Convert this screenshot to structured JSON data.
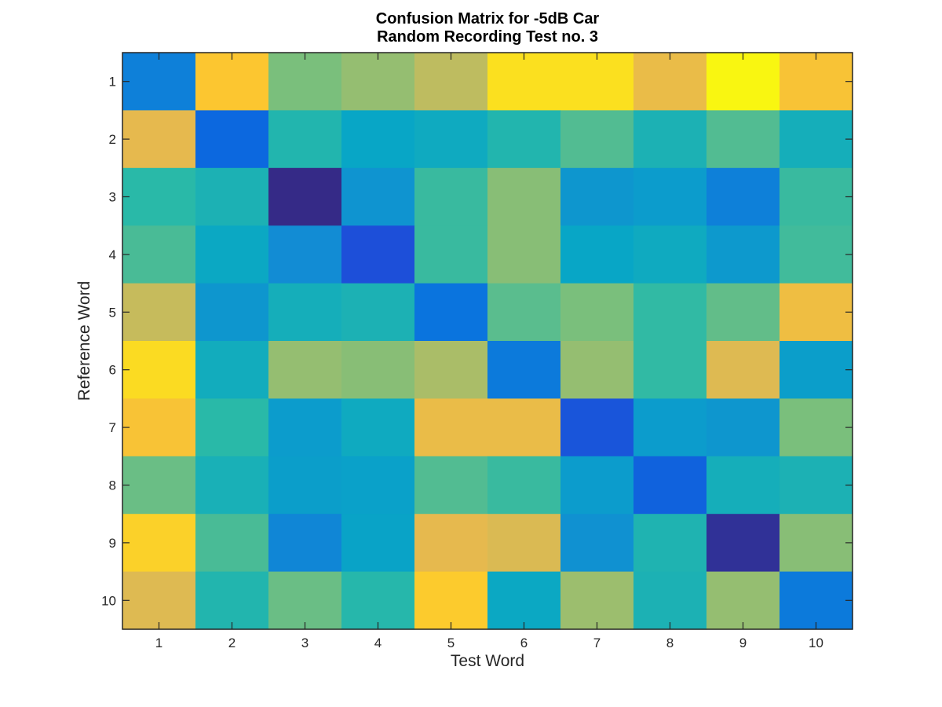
{
  "chart_data": {
    "type": "heatmap",
    "title": [
      "Confusion Matrix for -5dB Car",
      "Random Recording Test no. 3"
    ],
    "xlabel": "Test Word",
    "ylabel": "Reference Word",
    "x_ticks": [
      "1",
      "2",
      "3",
      "4",
      "5",
      "6",
      "7",
      "8",
      "9",
      "10"
    ],
    "y_ticks": [
      "1",
      "2",
      "3",
      "4",
      "5",
      "6",
      "7",
      "8",
      "9",
      "10"
    ],
    "colormap": "parula",
    "grid": false,
    "colorbar": false,
    "values": [
      [
        0.26,
        0.9,
        0.6,
        0.64,
        0.7,
        0.95,
        0.95,
        0.82,
        0.99,
        0.88
      ],
      [
        0.8,
        0.18,
        0.48,
        0.4,
        0.42,
        0.48,
        0.55,
        0.46,
        0.55,
        0.44
      ],
      [
        0.5,
        0.46,
        0.0,
        0.33,
        0.52,
        0.62,
        0.34,
        0.36,
        0.26,
        0.52
      ],
      [
        0.54,
        0.41,
        0.3,
        0.1,
        0.52,
        0.62,
        0.4,
        0.42,
        0.35,
        0.53
      ],
      [
        0.72,
        0.34,
        0.44,
        0.46,
        0.22,
        0.56,
        0.6,
        0.51,
        0.57,
        0.84
      ],
      [
        0.94,
        0.43,
        0.64,
        0.62,
        0.67,
        0.24,
        0.64,
        0.51,
        0.78,
        0.37
      ],
      [
        0.88,
        0.5,
        0.36,
        0.42,
        0.82,
        0.82,
        0.12,
        0.36,
        0.34,
        0.6
      ],
      [
        0.58,
        0.45,
        0.37,
        0.38,
        0.55,
        0.52,
        0.36,
        0.16,
        0.44,
        0.46
      ],
      [
        0.92,
        0.54,
        0.28,
        0.39,
        0.8,
        0.77,
        0.32,
        0.47,
        0.02,
        0.62
      ],
      [
        0.78,
        0.48,
        0.58,
        0.49,
        0.91,
        0.41,
        0.65,
        0.46,
        0.64,
        0.24
      ]
    ]
  }
}
